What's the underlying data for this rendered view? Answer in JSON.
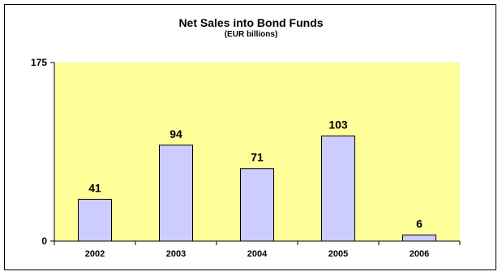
{
  "chart_data": {
    "type": "bar",
    "title": "Net Sales into Bond Funds",
    "subtitle": "(EUR billions)",
    "categories": [
      "2002",
      "2003",
      "2004",
      "2005",
      "2006"
    ],
    "values": [
      41,
      94,
      71,
      103,
      6
    ],
    "data_labels": [
      "41",
      "94",
      "71",
      "103",
      "6"
    ],
    "ylim": [
      0,
      175
    ],
    "yticks": [
      "0",
      "175"
    ],
    "grid": false,
    "legend": "none",
    "colors": {
      "plot_background": "#ffff99",
      "bar_fill": "#ccccff",
      "bar_stroke": "#000000"
    }
  }
}
